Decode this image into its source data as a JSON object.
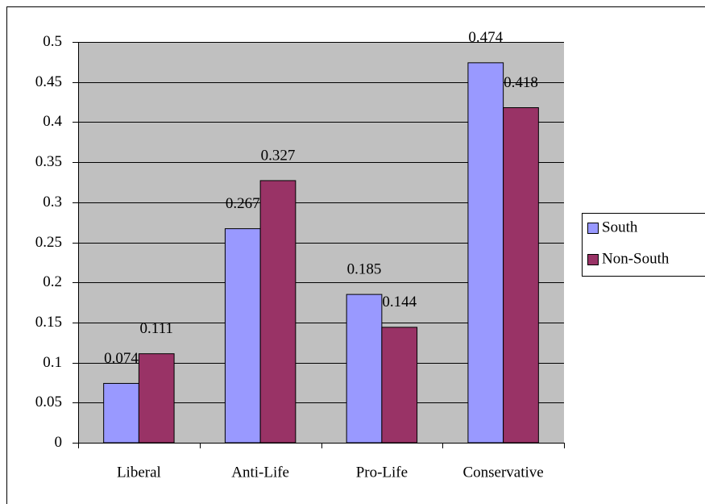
{
  "chart_data": {
    "type": "bar",
    "categories": [
      "Liberal",
      "Anti-Life",
      "Pro-Life",
      "Conservative"
    ],
    "series": [
      {
        "name": "South",
        "color": "#9999ff",
        "values": [
          0.074,
          0.267,
          0.185,
          0.474
        ]
      },
      {
        "name": "Non-South",
        "color": "#993366",
        "values": [
          0.111,
          0.327,
          0.144,
          0.418
        ]
      }
    ],
    "ylim": [
      0,
      0.5
    ],
    "yticks": [
      0,
      0.05,
      0.1,
      0.15,
      0.2,
      0.25,
      0.3,
      0.35,
      0.4,
      0.45,
      0.5
    ],
    "grid": true,
    "plot_background": "#c0c0c0",
    "legend": "right"
  }
}
